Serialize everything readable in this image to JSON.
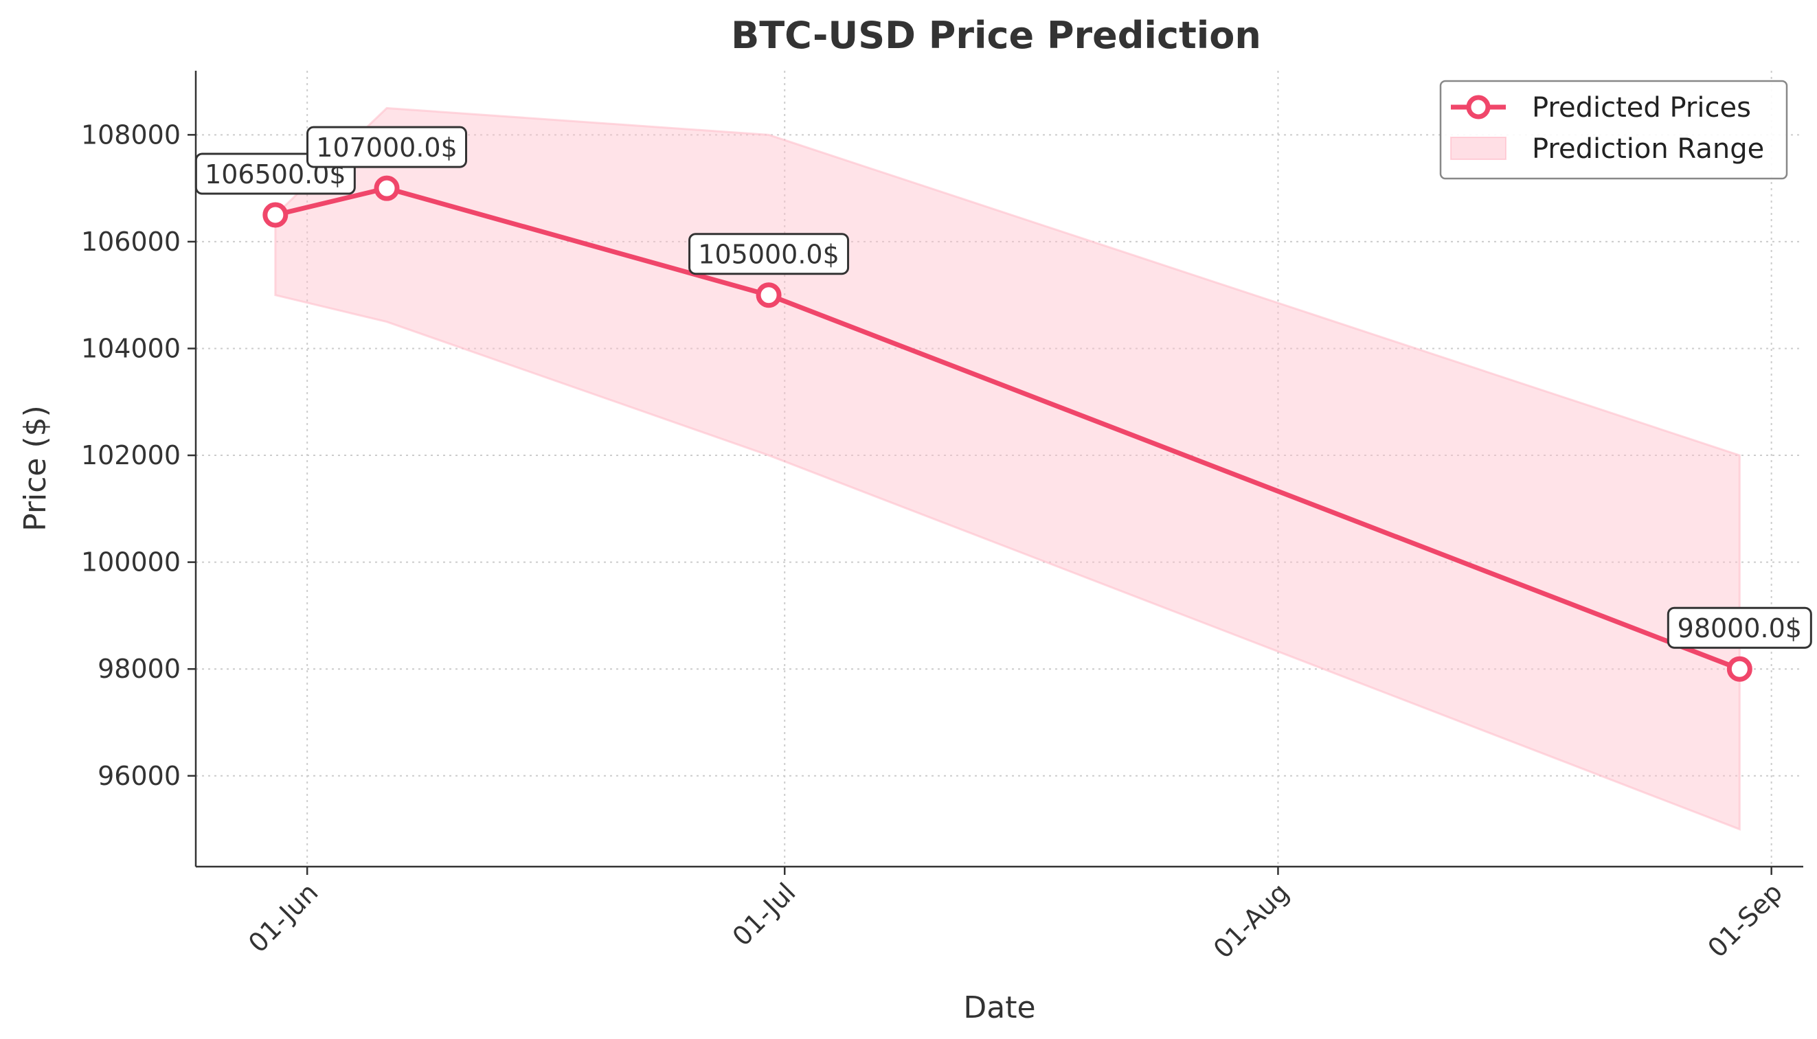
{
  "chart_data": {
    "type": "line",
    "title": "BTC-USD Price Prediction",
    "xlabel": "Date",
    "ylabel": "Price ($)",
    "x": [
      "2025-05-30",
      "2025-06-06",
      "2025-06-30",
      "2025-08-30"
    ],
    "series": [
      {
        "name": "Predicted Prices",
        "values": [
          106500,
          107000,
          105000,
          98000
        ],
        "color": "#f0466a"
      }
    ],
    "band": {
      "name": "Prediction Range",
      "lower": [
        105000,
        104500,
        102000,
        95000
      ],
      "upper": [
        106500,
        108500,
        108000,
        102000
      ],
      "color": "#ffc0cb"
    },
    "annotations": [
      "106500.0$",
      "107000.0$",
      "105000.0$",
      "98000.0$"
    ],
    "x_ticks": [
      {
        "date": "2025-06-01",
        "label": "01-Jun"
      },
      {
        "date": "2025-07-01",
        "label": "01-Jul"
      },
      {
        "date": "2025-08-01",
        "label": "01-Aug"
      },
      {
        "date": "2025-09-01",
        "label": "01-Sep"
      }
    ],
    "y_ticks": [
      96000,
      98000,
      100000,
      102000,
      104000,
      106000,
      108000
    ],
    "xlim": [
      "2025-05-25",
      "2025-09-03"
    ],
    "ylim": [
      94300,
      109200
    ],
    "grid": true,
    "legend_position": "top-right"
  }
}
